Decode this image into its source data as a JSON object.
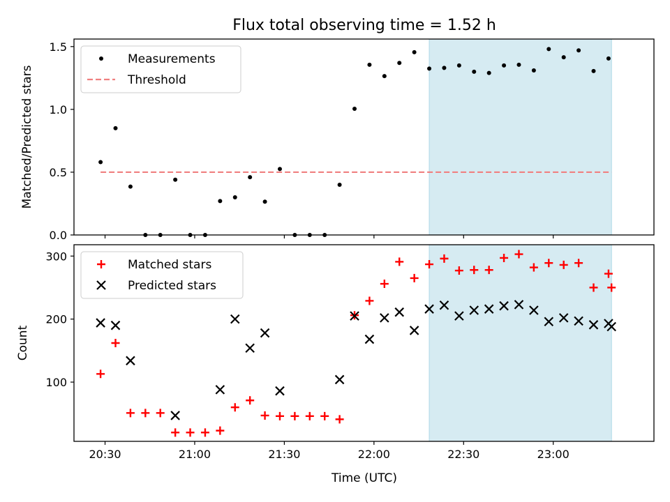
{
  "title": "Flux total observing time = 1.52 h",
  "xlabel": "Time (UTC)",
  "x_ticks": [
    {
      "t": 30,
      "label": "20:30"
    },
    {
      "t": 60,
      "label": "21:00"
    },
    {
      "t": 90,
      "label": "21:30"
    },
    {
      "t": 120,
      "label": "22:00"
    },
    {
      "t": 150,
      "label": "22:30"
    },
    {
      "t": 180,
      "label": "23:00"
    }
  ],
  "colors": {
    "measure": "#000000",
    "threshold": "#f08080",
    "matched": "#ff0000",
    "predicted": "#000000",
    "span": "#add8e6"
  },
  "chart_data": [
    {
      "type": "scatter",
      "panel": "top",
      "ylabel": "Matched/Predicted stars",
      "xlim": [
        19.6,
        213.7
      ],
      "ylim": [
        0,
        1.56
      ],
      "y_ticks": [
        0.0,
        0.5,
        1.0,
        1.5
      ],
      "y_tick_labels": [
        "0.0",
        "0.5",
        "1.0",
        "1.5"
      ],
      "x_unit": "minutes after 20:00 UTC",
      "highlight_span": [
        138.5,
        199.5
      ],
      "threshold": {
        "y": 0.5,
        "x_range": [
          28.5,
          199.5
        ]
      },
      "series": [
        {
          "name": "Measurements",
          "x": [
            28.5,
            33.5,
            38.5,
            43.5,
            48.5,
            53.5,
            58.5,
            63.5,
            68.5,
            73.5,
            78.5,
            83.5,
            88.5,
            93.5,
            98.5,
            103.5,
            108.5,
            113.5,
            118.5,
            123.5,
            128.5,
            133.5,
            138.5,
            143.5,
            148.5,
            153.5,
            158.5,
            163.5,
            168.5,
            173.5,
            178.5,
            183.5,
            188.5,
            193.5,
            198.5
          ],
          "y": [
            0.58,
            0.85,
            0.385,
            0.0,
            0.0,
            0.44,
            0.0,
            0.0,
            0.27,
            0.3,
            0.46,
            0.265,
            0.525,
            0.0,
            0.0,
            0.0,
            0.4,
            1.005,
            1.355,
            1.265,
            1.37,
            1.455,
            1.325,
            1.33,
            1.35,
            1.3,
            1.29,
            1.35,
            1.355,
            1.31,
            1.48,
            1.415,
            1.47,
            1.305,
            1.405
          ]
        }
      ],
      "legend": [
        {
          "label": "Measurements",
          "kind": "dot"
        },
        {
          "label": "Threshold",
          "kind": "dashed-line"
        }
      ]
    },
    {
      "type": "scatter",
      "panel": "bottom",
      "ylabel": "Count",
      "xlim": [
        19.6,
        213.7
      ],
      "ylim": [
        6,
        318
      ],
      "y_ticks": [
        100,
        200,
        300
      ],
      "y_tick_labels": [
        "100",
        "200",
        "300"
      ],
      "x_unit": "minutes after 20:00 UTC",
      "highlight_span": [
        138.5,
        199.5
      ],
      "series": [
        {
          "name": "Matched stars",
          "x": [
            28.5,
            33.5,
            38.5,
            43.5,
            48.5,
            53.5,
            58.5,
            63.5,
            68.5,
            73.5,
            78.5,
            83.5,
            88.5,
            93.5,
            98.5,
            103.5,
            108.5,
            113.5,
            118.5,
            123.5,
            128.5,
            133.5,
            138.5,
            143.5,
            148.5,
            153.5,
            158.5,
            163.5,
            168.5,
            173.5,
            178.5,
            183.5,
            188.5,
            193.5,
            198.5,
            199.5
          ],
          "y": [
            113,
            162,
            51,
            51,
            51,
            20,
            20,
            20,
            23,
            60,
            71,
            47,
            46,
            46,
            46,
            46,
            41,
            206,
            229,
            256,
            291,
            265,
            287,
            296,
            277,
            278,
            278,
            297,
            303,
            282,
            289,
            286,
            289,
            250,
            272,
            250
          ]
        },
        {
          "name": "Predicted stars",
          "x": [
            28.5,
            33.5,
            38.5,
            53.5,
            68.5,
            73.5,
            78.5,
            83.5,
            88.5,
            108.5,
            113.5,
            118.5,
            123.5,
            128.5,
            133.5,
            138.5,
            143.5,
            148.5,
            153.5,
            158.5,
            163.5,
            168.5,
            173.5,
            178.5,
            183.5,
            188.5,
            193.5,
            198.5,
            199.5
          ],
          "y": [
            194,
            190,
            134,
            47,
            88,
            200,
            154,
            178,
            86,
            104,
            205,
            168,
            202,
            211,
            182,
            216,
            222,
            205,
            214,
            216,
            221,
            223,
            214,
            196,
            202,
            197,
            191,
            193,
            188
          ]
        }
      ],
      "legend": [
        {
          "label": "Matched stars",
          "kind": "plus"
        },
        {
          "label": "Predicted stars",
          "kind": "cross"
        }
      ]
    }
  ]
}
